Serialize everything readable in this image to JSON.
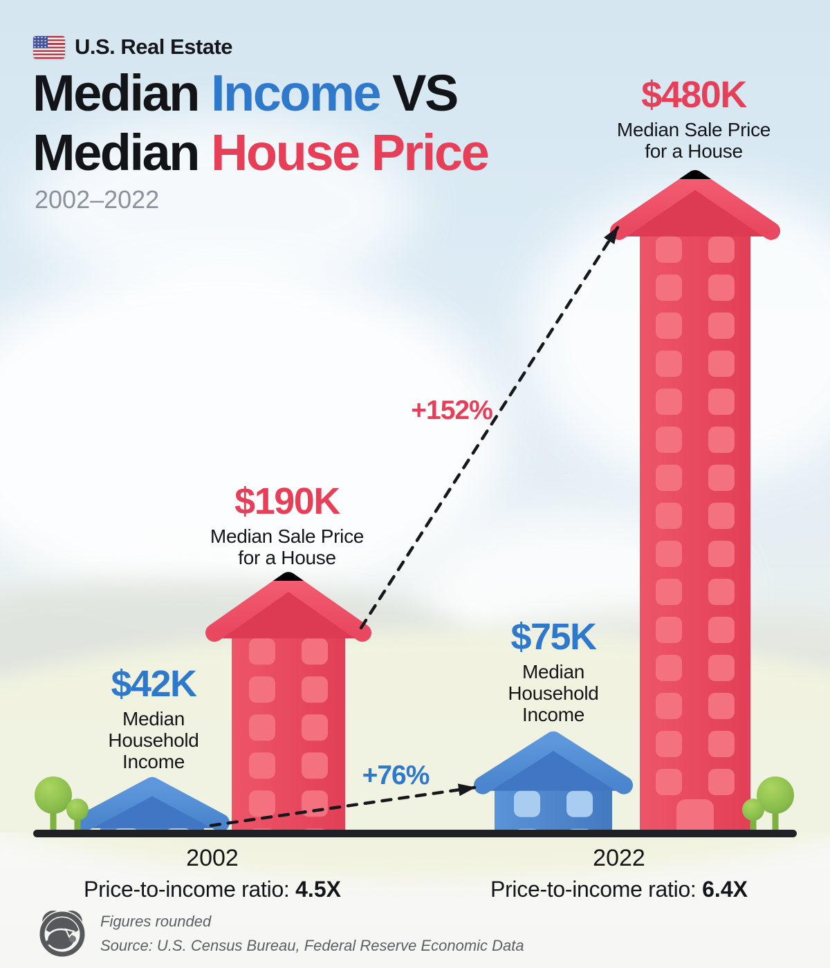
{
  "header": {
    "flag_icon": "us-flag-icon",
    "tag": "U.S. Real Estate",
    "title": {
      "part1": "Median ",
      "part2_blue": "Income",
      "part3": " VS",
      "part4": "Median ",
      "part5_red": "House Price"
    },
    "subtitle": "2002–2022"
  },
  "chart_data": {
    "type": "bar",
    "bar_style": "house-pictogram",
    "title": "Median Income VS Median House Price",
    "period": "2002–2022",
    "unit": "USD",
    "categories": [
      "2002",
      "2022"
    ],
    "series": [
      {
        "name": "Median Household Income",
        "color": "#2e79cb",
        "values": [
          42000,
          75000
        ],
        "value_labels": [
          "$42K",
          "$75K"
        ]
      },
      {
        "name": "Median Sale Price for a House",
        "color": "#e83f58",
        "values": [
          190000,
          480000
        ],
        "value_labels": [
          "$190K",
          "$480K"
        ]
      }
    ],
    "growth": [
      {
        "series": "Median Sale Price for a House",
        "label": "+152%"
      },
      {
        "series": "Median Household Income",
        "label": "+76%"
      }
    ],
    "ratios": [
      {
        "year": "2002",
        "label": "Price-to-income ratio: ",
        "value": "4.5X"
      },
      {
        "year": "2022",
        "label": "Price-to-income ratio: ",
        "value": "6.4X"
      }
    ],
    "ylim": [
      0,
      480000
    ],
    "grid": false,
    "legend": "none"
  },
  "value_labels": {
    "income_2002": {
      "amount": "$42K",
      "lines": [
        "Median",
        "Household",
        "Income"
      ]
    },
    "income_2022": {
      "amount": "$75K",
      "lines": [
        "Median",
        "Household",
        "Income"
      ]
    },
    "price_2002": {
      "amount": "$190K",
      "lines": [
        "Median Sale Price",
        "for a House"
      ]
    },
    "price_2022": {
      "amount": "$480K",
      "lines": [
        "Median Sale Price",
        "for a House"
      ]
    }
  },
  "footer": {
    "logo_icon": "piggy-bank-binoculars-logo",
    "note": "Figures rounded",
    "source": "Source: U.S. Census Bureau, Federal Reserve Economic Data"
  },
  "colors": {
    "income_blue": "#2e79cb",
    "price_red": "#e83f58",
    "house_red_body": "#e6495f",
    "house_red_window": "#f4717f",
    "house_blue_body": "#4d87cd",
    "house_blue_window": "#a9cdf1",
    "text_black": "#131519",
    "subtitle_gray": "#8c929b",
    "footer_gray": "#5b5f63",
    "ground_line": "#1f2125",
    "tree_green": "#8abd4e",
    "sky": "#d9e9f3",
    "cloud": "#ffffff",
    "hill": "#f1f3e1",
    "arrow_black": "#17181b"
  }
}
